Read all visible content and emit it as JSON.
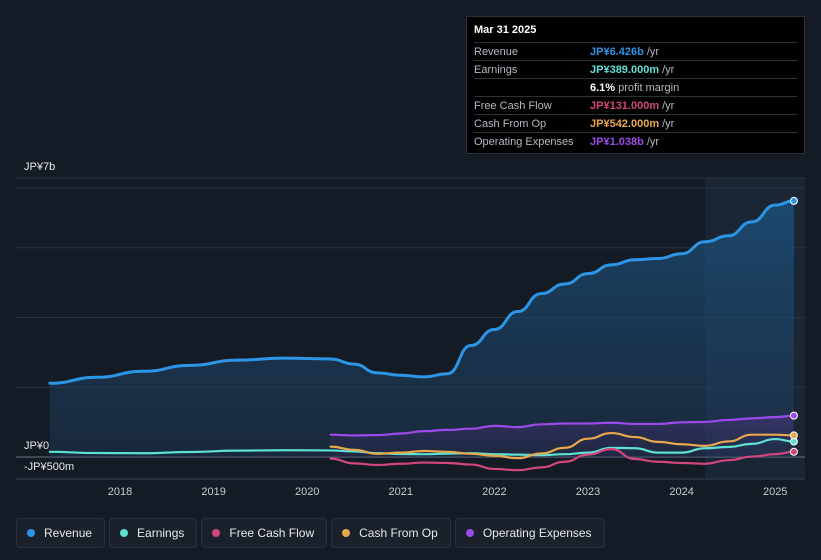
{
  "chart_data": {
    "type": "area",
    "ylim": [
      -500,
      7000
    ],
    "y_axis_labels": [
      {
        "label": "JP¥7b",
        "value": 7000
      },
      {
        "label": "JP¥0",
        "value": 0
      },
      {
        "label": "-JP¥500m",
        "value": -500
      }
    ],
    "x_ticks": [
      2018,
      2019,
      2020,
      2021,
      2022,
      2023,
      2024,
      2025
    ],
    "highlight_from": 2024.25,
    "series": [
      {
        "name": "Revenue",
        "color": "#2d95e6",
        "points": [
          [
            2017.25,
            1850
          ],
          [
            2017.75,
            2000
          ],
          [
            2018.25,
            2150
          ],
          [
            2018.75,
            2300
          ],
          [
            2019.25,
            2430
          ],
          [
            2019.75,
            2480
          ],
          [
            2020.25,
            2460
          ],
          [
            2020.5,
            2330
          ],
          [
            2020.75,
            2110
          ],
          [
            2021.0,
            2050
          ],
          [
            2021.25,
            2010
          ],
          [
            2021.5,
            2090
          ],
          [
            2021.75,
            2800
          ],
          [
            2022.0,
            3200
          ],
          [
            2022.25,
            3650
          ],
          [
            2022.5,
            4100
          ],
          [
            2022.75,
            4340
          ],
          [
            2023.0,
            4600
          ],
          [
            2023.25,
            4820
          ],
          [
            2023.5,
            4950
          ],
          [
            2023.75,
            4980
          ],
          [
            2024.0,
            5100
          ],
          [
            2024.25,
            5400
          ],
          [
            2024.5,
            5550
          ],
          [
            2024.75,
            5900
          ],
          [
            2025.0,
            6320
          ],
          [
            2025.2,
            6426
          ]
        ]
      },
      {
        "name": "Earnings",
        "color": "#5fe0d4",
        "points": [
          [
            2017.25,
            130
          ],
          [
            2017.75,
            100
          ],
          [
            2018.25,
            95
          ],
          [
            2018.75,
            125
          ],
          [
            2019.25,
            160
          ],
          [
            2019.75,
            170
          ],
          [
            2020.25,
            165
          ],
          [
            2020.5,
            140
          ],
          [
            2020.75,
            95
          ],
          [
            2021.0,
            75
          ],
          [
            2021.25,
            70
          ],
          [
            2021.5,
            85
          ],
          [
            2021.75,
            95
          ],
          [
            2022.0,
            70
          ],
          [
            2022.25,
            60
          ],
          [
            2022.5,
            45
          ],
          [
            2022.75,
            70
          ],
          [
            2023.0,
            110
          ],
          [
            2023.25,
            230
          ],
          [
            2023.5,
            220
          ],
          [
            2023.75,
            110
          ],
          [
            2024.0,
            110
          ],
          [
            2024.25,
            220
          ],
          [
            2024.5,
            250
          ],
          [
            2024.75,
            330
          ],
          [
            2025.0,
            450
          ],
          [
            2025.2,
            389
          ]
        ]
      },
      {
        "name": "Free Cash Flow",
        "color": "#d1477d",
        "points": [
          [
            2020.25,
            -40
          ],
          [
            2020.5,
            -160
          ],
          [
            2020.75,
            -200
          ],
          [
            2021.0,
            -170
          ],
          [
            2021.25,
            -140
          ],
          [
            2021.5,
            -150
          ],
          [
            2021.75,
            -190
          ],
          [
            2022.0,
            -300
          ],
          [
            2022.25,
            -330
          ],
          [
            2022.5,
            -260
          ],
          [
            2022.75,
            -120
          ],
          [
            2023.0,
            60
          ],
          [
            2023.25,
            200
          ],
          [
            2023.5,
            -50
          ],
          [
            2023.75,
            -120
          ],
          [
            2024.0,
            -150
          ],
          [
            2024.25,
            -170
          ],
          [
            2024.5,
            -80
          ],
          [
            2024.75,
            10
          ],
          [
            2025.0,
            70
          ],
          [
            2025.2,
            131
          ]
        ]
      },
      {
        "name": "Cash From Op",
        "color": "#e8a84e",
        "points": [
          [
            2020.25,
            260
          ],
          [
            2020.5,
            180
          ],
          [
            2020.75,
            80
          ],
          [
            2021.0,
            110
          ],
          [
            2021.25,
            150
          ],
          [
            2021.5,
            130
          ],
          [
            2021.75,
            80
          ],
          [
            2022.0,
            30
          ],
          [
            2022.25,
            -30
          ],
          [
            2022.5,
            90
          ],
          [
            2022.75,
            230
          ],
          [
            2023.0,
            460
          ],
          [
            2023.25,
            600
          ],
          [
            2023.5,
            500
          ],
          [
            2023.75,
            380
          ],
          [
            2024.0,
            320
          ],
          [
            2024.25,
            280
          ],
          [
            2024.5,
            390
          ],
          [
            2024.75,
            560
          ],
          [
            2025.0,
            560
          ],
          [
            2025.2,
            542
          ]
        ]
      },
      {
        "name": "Operating Expenses",
        "color": "#9c4bea",
        "points": [
          [
            2020.25,
            560
          ],
          [
            2020.5,
            540
          ],
          [
            2020.75,
            550
          ],
          [
            2021.0,
            590
          ],
          [
            2021.25,
            650
          ],
          [
            2021.5,
            680
          ],
          [
            2021.75,
            710
          ],
          [
            2022.0,
            780
          ],
          [
            2022.25,
            750
          ],
          [
            2022.5,
            820
          ],
          [
            2022.75,
            840
          ],
          [
            2023.0,
            840
          ],
          [
            2023.25,
            860
          ],
          [
            2023.5,
            830
          ],
          [
            2023.75,
            830
          ],
          [
            2024.0,
            870
          ],
          [
            2024.25,
            880
          ],
          [
            2024.5,
            930
          ],
          [
            2024.75,
            970
          ],
          [
            2025.0,
            1000
          ],
          [
            2025.2,
            1038
          ]
        ]
      }
    ]
  },
  "tooltip": {
    "date": "Mar 31 2025",
    "rows": [
      {
        "label": "Revenue",
        "value": "JP¥6.426b",
        "unit": "/yr",
        "color": "#2d95e6"
      },
      {
        "label": "Earnings",
        "value": "JP¥389.000m",
        "unit": "/yr",
        "color": "#5fe0d4"
      },
      {
        "label": "",
        "value": "6.1%",
        "unit": "profit margin",
        "color": "#ffffff"
      },
      {
        "label": "Free Cash Flow",
        "value": "JP¥131.000m",
        "unit": "/yr",
        "color": "#d1477d"
      },
      {
        "label": "Cash From Op",
        "value": "JP¥542.000m",
        "unit": "/yr",
        "color": "#e8a84e"
      },
      {
        "label": "Operating Expenses",
        "value": "JP¥1.038b",
        "unit": "/yr",
        "color": "#9c4bea"
      }
    ]
  },
  "legend": [
    {
      "label": "Revenue",
      "color": "#2d95e6"
    },
    {
      "label": "Earnings",
      "color": "#5fe0d4"
    },
    {
      "label": "Free Cash Flow",
      "color": "#d1477d"
    },
    {
      "label": "Cash From Op",
      "color": "#e8a84e"
    },
    {
      "label": "Operating Expenses",
      "color": "#9c4bea"
    }
  ]
}
